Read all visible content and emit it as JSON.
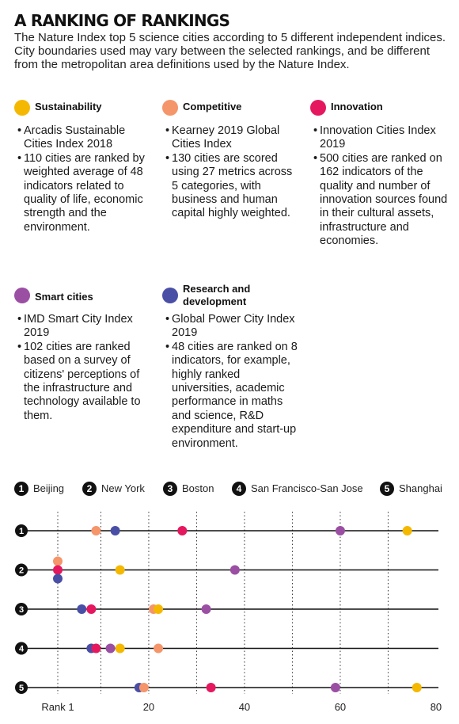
{
  "title": "A RANKING OF RANKINGS",
  "subtitle": "The Nature Index top 5 science cities according to 5 different independent indices. City boundaries used may vary between the selected rankings, and be different from the metropolitan area definitions used by the Nature Index.",
  "indices": [
    {
      "name": "Sustainability",
      "color": "#f5b800",
      "bullets": [
        "Arcadis Sustainable Cities Index 2018",
        "110 cities are ranked by weighted average of 48 indicators related to quality of life, economic strength and the environment."
      ]
    },
    {
      "name": "Competitive",
      "color": "#f5956a",
      "bullets": [
        "Kearney 2019 Global Cities Index",
        "130 cities are scored using 27 metrics across 5 categories, with business and human capital highly weighted."
      ]
    },
    {
      "name": "Innovation",
      "color": "#e5185f",
      "bullets": [
        "Innovation Cities Index 2019",
        "500 cities are ranked on 162 indicators of the quality and number of innovation sources found in their cultural assets, infrastructure and economies."
      ]
    },
    {
      "name": "Smart cities",
      "color": "#9b4fa3",
      "bullets": [
        "IMD Smart City Index 2019",
        "102 cities are ranked based on a survey of citizens' perceptions of the infrastructure and technology available to them."
      ]
    },
    {
      "name": "Research and development",
      "color": "#4a4fa6",
      "bullets": [
        "Global Power City Index 2019",
        "48 cities are ranked on 8 indicators, for example, highly ranked universities, academic performance in maths and science, R&D expenditure and start-up environment."
      ]
    }
  ],
  "cities": [
    {
      "num": "1",
      "name": "Beijing"
    },
    {
      "num": "2",
      "name": "New York"
    },
    {
      "num": "3",
      "name": "Boston"
    },
    {
      "num": "4",
      "name": "San Francisco-San Jose"
    },
    {
      "num": "5",
      "name": "Shanghai"
    }
  ],
  "chart_data": {
    "type": "scatter",
    "x_label": "Rank 1",
    "x_ticks": [
      "20",
      "40",
      "60",
      "80"
    ],
    "xlim": [
      1,
      80
    ],
    "rows": [
      "1",
      "2",
      "3",
      "4",
      "5"
    ],
    "series": [
      {
        "name": "Sustainability",
        "color": "#f5b800",
        "values": [
          74,
          14,
          22,
          14,
          76
        ]
      },
      {
        "name": "Competitive",
        "color": "#f5956a",
        "values": [
          9,
          1,
          21,
          22,
          19
        ]
      },
      {
        "name": "Innovation",
        "color": "#e5185f",
        "values": [
          27,
          1,
          8,
          9,
          33
        ]
      },
      {
        "name": "Smart cities",
        "color": "#9b4fa3",
        "values": [
          60,
          38,
          32,
          12,
          59
        ]
      },
      {
        "name": "Research and development",
        "color": "#4a4fa6",
        "values": [
          13,
          1,
          6,
          8,
          18
        ]
      }
    ]
  }
}
